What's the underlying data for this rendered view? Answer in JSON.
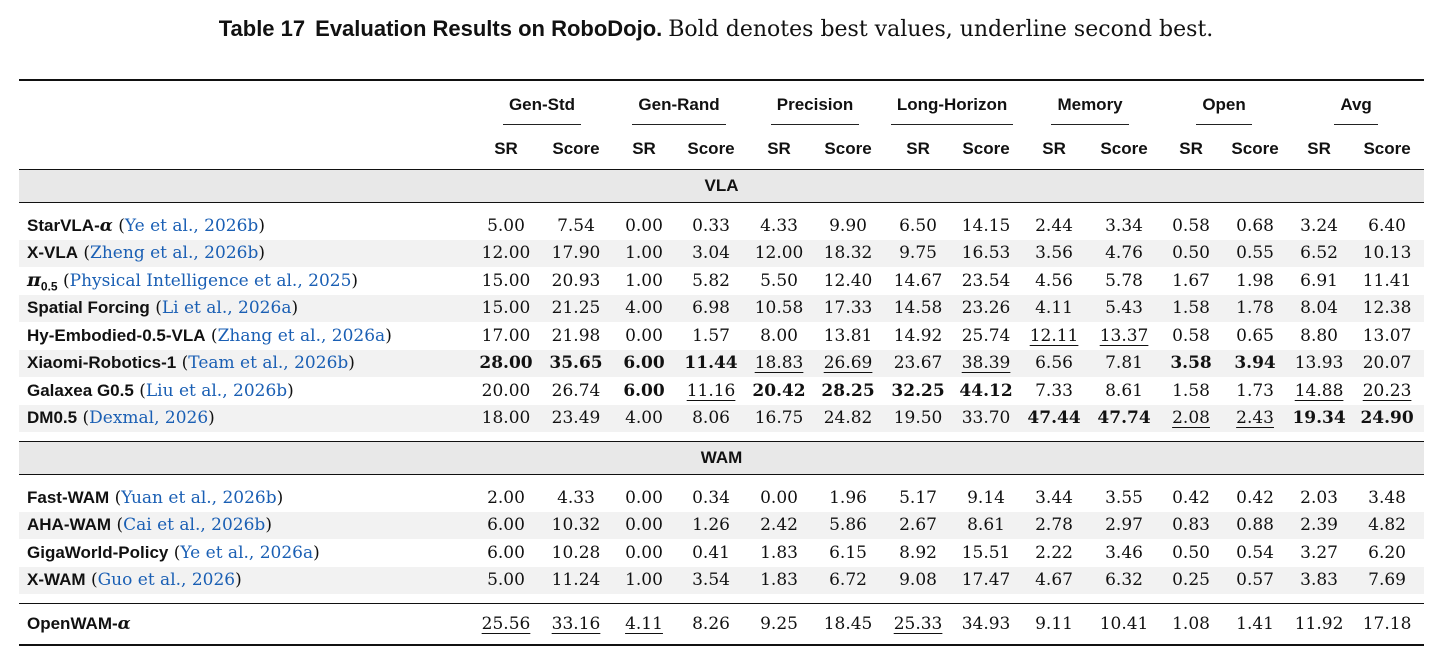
{
  "caption": {
    "label": "Table 17",
    "title": "Evaluation Results on RoboDojo.",
    "description": "Bold denotes best values, underline second best."
  },
  "table": {
    "groups": [
      "Gen-Std",
      "Gen-Rand",
      "Precision",
      "Long-Horizon",
      "Memory",
      "Open",
      "Avg"
    ],
    "subheaders": [
      "SR",
      "Score"
    ],
    "sections": [
      {
        "title": "VLA",
        "rows": [
          {
            "name": "StarVLA-α",
            "cite": [
              "Ye et al.",
              "2026b"
            ],
            "values": [
              "5.00",
              "7.54",
              "0.00",
              "0.33",
              "4.33",
              "9.90",
              "6.50",
              "14.15",
              "2.44",
              "3.34",
              "0.58",
              "0.68",
              "3.24",
              "6.40"
            ],
            "bold": [],
            "underline": []
          },
          {
            "name": "X-VLA",
            "cite": [
              "Zheng et al.",
              "2026b"
            ],
            "values": [
              "12.00",
              "17.90",
              "1.00",
              "3.04",
              "12.00",
              "18.32",
              "9.75",
              "16.53",
              "3.56",
              "4.76",
              "0.50",
              "0.55",
              "6.52",
              "10.13"
            ],
            "bold": [],
            "underline": []
          },
          {
            "name": "π0.5",
            "cite": [
              "Physical Intelligence et al.",
              "2025"
            ],
            "values": [
              "15.00",
              "20.93",
              "1.00",
              "5.82",
              "5.50",
              "12.40",
              "14.67",
              "23.54",
              "4.56",
              "5.78",
              "1.67",
              "1.98",
              "6.91",
              "11.41"
            ],
            "bold": [],
            "underline": []
          },
          {
            "name": "Spatial Forcing",
            "cite": [
              "Li et al.",
              "2026a"
            ],
            "values": [
              "15.00",
              "21.25",
              "4.00",
              "6.98",
              "10.58",
              "17.33",
              "14.58",
              "23.26",
              "4.11",
              "5.43",
              "1.58",
              "1.78",
              "8.04",
              "12.38"
            ],
            "bold": [],
            "underline": []
          },
          {
            "name": "Hy-Embodied-0.5-VLA",
            "cite": [
              "Zhang et al.",
              "2026a"
            ],
            "values": [
              "17.00",
              "21.98",
              "0.00",
              "1.57",
              "8.00",
              "13.81",
              "14.92",
              "25.74",
              "12.11",
              "13.37",
              "0.58",
              "0.65",
              "8.80",
              "13.07"
            ],
            "bold": [],
            "underline": [
              8,
              9
            ]
          },
          {
            "name": "Xiaomi-Robotics-1",
            "cite": [
              "Team et al.",
              "2026b"
            ],
            "values": [
              "28.00",
              "35.65",
              "6.00",
              "11.44",
              "18.83",
              "26.69",
              "23.67",
              "38.39",
              "6.56",
              "7.81",
              "3.58",
              "3.94",
              "13.93",
              "20.07"
            ],
            "bold": [
              0,
              1,
              2,
              3,
              10,
              11
            ],
            "underline": [
              4,
              5,
              7
            ]
          },
          {
            "name": "Galaxea G0.5",
            "cite": [
              "Liu et al.",
              "2026b"
            ],
            "values": [
              "20.00",
              "26.74",
              "6.00",
              "11.16",
              "20.42",
              "28.25",
              "32.25",
              "44.12",
              "7.33",
              "8.61",
              "1.58",
              "1.73",
              "14.88",
              "20.23"
            ],
            "bold": [
              2,
              4,
              5,
              6,
              7
            ],
            "underline": [
              3,
              12,
              13
            ]
          },
          {
            "name": "DM0.5",
            "cite": [
              "Dexmal",
              "2026"
            ],
            "values": [
              "18.00",
              "23.49",
              "4.00",
              "8.06",
              "16.75",
              "24.82",
              "19.50",
              "33.70",
              "47.44",
              "47.74",
              "2.08",
              "2.43",
              "19.34",
              "24.90"
            ],
            "bold": [
              8,
              9,
              12,
              13
            ],
            "underline": [
              10,
              11
            ]
          }
        ]
      },
      {
        "title": "WAM",
        "rows": [
          {
            "name": "Fast-WAM",
            "cite": [
              "Yuan et al.",
              "2026b"
            ],
            "values": [
              "2.00",
              "4.33",
              "0.00",
              "0.34",
              "0.00",
              "1.96",
              "5.17",
              "9.14",
              "3.44",
              "3.55",
              "0.42",
              "0.42",
              "2.03",
              "3.48"
            ],
            "bold": [],
            "underline": []
          },
          {
            "name": "AHA-WAM",
            "cite": [
              "Cai et al.",
              "2026b"
            ],
            "values": [
              "6.00",
              "10.32",
              "0.00",
              "1.26",
              "2.42",
              "5.86",
              "2.67",
              "8.61",
              "2.78",
              "2.97",
              "0.83",
              "0.88",
              "2.39",
              "4.82"
            ],
            "bold": [],
            "underline": []
          },
          {
            "name": "GigaWorld-Policy",
            "cite": [
              "Ye et al.",
              "2026a"
            ],
            "values": [
              "6.00",
              "10.28",
              "0.00",
              "0.41",
              "1.83",
              "6.15",
              "8.92",
              "15.51",
              "2.22",
              "3.46",
              "0.50",
              "0.54",
              "3.27",
              "6.20"
            ],
            "bold": [],
            "underline": []
          },
          {
            "name": "X-WAM",
            "cite": [
              "Guo et al.",
              "2026"
            ],
            "values": [
              "5.00",
              "11.24",
              "1.00",
              "3.54",
              "1.83",
              "6.72",
              "9.08",
              "17.47",
              "4.67",
              "6.32",
              "0.25",
              "0.57",
              "3.83",
              "7.69"
            ],
            "bold": [],
            "underline": []
          }
        ]
      }
    ],
    "final_row": {
      "name": "OpenWAM-α",
      "cite": null,
      "values": [
        "25.56",
        "33.16",
        "4.11",
        "8.26",
        "9.25",
        "18.45",
        "25.33",
        "34.93",
        "9.11",
        "10.41",
        "1.08",
        "1.41",
        "11.92",
        "17.18"
      ],
      "bold": [],
      "underline": [
        0,
        1,
        2,
        6
      ]
    }
  }
}
